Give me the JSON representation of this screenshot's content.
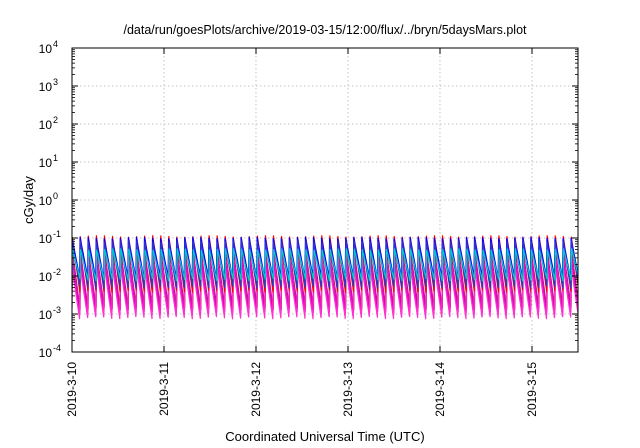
{
  "chart_data": {
    "type": "line",
    "title": "/data/run/goesPlots/archive/2019-03-15/12:00/flux/../bryn/5daysMars.plot",
    "xlabel": "Coordinated Universal Time (UTC)",
    "ylabel": "cGy/day",
    "yscale": "log",
    "ylim": [
      0.0001,
      10000
    ],
    "y_ticks": [
      {
        "base": "10",
        "exp": "-4"
      },
      {
        "base": "10",
        "exp": "-3"
      },
      {
        "base": "10",
        "exp": "-2"
      },
      {
        "base": "10",
        "exp": "-1"
      },
      {
        "base": "10",
        "exp": "0"
      },
      {
        "base": "10",
        "exp": "1"
      },
      {
        "base": "10",
        "exp": "2"
      },
      {
        "base": "10",
        "exp": "3"
      },
      {
        "base": "10",
        "exp": "4"
      }
    ],
    "xlim": [
      "2019-03-10T00:00",
      "2019-03-15T12:00"
    ],
    "x_tick_labels": [
      "2019-3-10",
      "2019-3-11",
      "2019-3-12",
      "2019-3-13",
      "2019-3-14",
      "2019-3-15"
    ],
    "grid": true,
    "legend": "none",
    "sawtooth_period_hours": 2.1,
    "series": [
      {
        "color": "#ff00ff",
        "peak": 0.035,
        "trough": 0.0009
      },
      {
        "color": "#e000e0",
        "peak": 0.025,
        "trough": 0.0011
      },
      {
        "color": "#c71585",
        "peak": 0.045,
        "trough": 0.0014
      },
      {
        "color": "#ff33cc",
        "peak": 0.018,
        "trough": 0.0008
      },
      {
        "color": "#ff0000",
        "peak": 0.11,
        "trough": 0.004
      },
      {
        "color": "#00c000",
        "peak": 0.06,
        "trough": 0.006
      },
      {
        "color": "#0000ff",
        "peak": 0.1,
        "trough": 0.009
      },
      {
        "color": "#3333cc",
        "peak": 0.08,
        "trough": 0.005
      },
      {
        "color": "#00cccc",
        "peak": 0.05,
        "trough": 0.008
      }
    ]
  }
}
